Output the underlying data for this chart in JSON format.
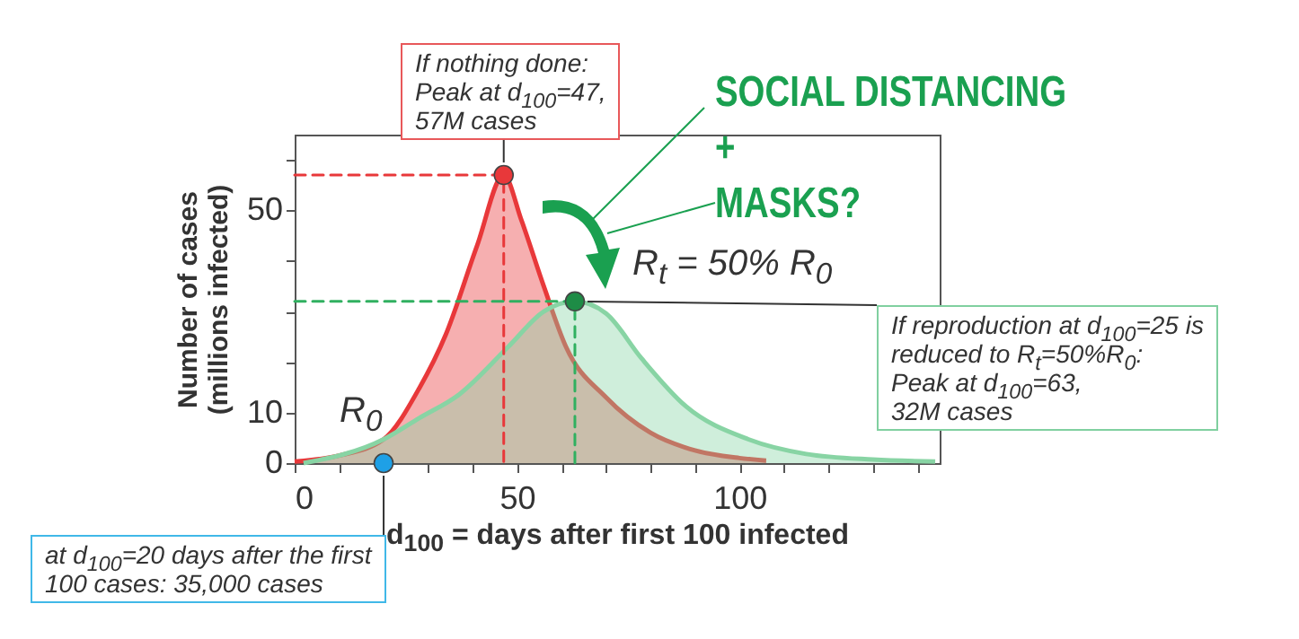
{
  "chart_data": {
    "type": "area",
    "xlabel": "d$_{100}$ = days after first 100 infected",
    "ylabel": "Number of cases\n(millions infected)",
    "xlim": [
      0,
      145
    ],
    "ylim": [
      0,
      65
    ],
    "xticks": [
      0,
      {
        "value": 10,
        "label": null
      },
      {
        "value": 20,
        "label": null
      },
      {
        "value": 30,
        "label": null
      },
      {
        "value": 40,
        "label": null
      },
      50,
      {
        "value": 60,
        "label": null
      },
      {
        "value": 70,
        "label": null
      },
      {
        "value": 80,
        "label": null
      },
      {
        "value": 90,
        "label": null
      },
      100,
      {
        "value": 110,
        "label": null
      },
      {
        "value": 120,
        "label": null
      },
      {
        "value": 130,
        "label": null
      },
      {
        "value": 140,
        "label": null
      }
    ],
    "yticks": [
      0,
      10,
      {
        "value": 20,
        "label": null
      },
      {
        "value": 30,
        "label": null
      },
      {
        "value": 40,
        "label": null
      },
      50,
      {
        "value": 60,
        "label": null
      }
    ],
    "grid": false,
    "series": [
      {
        "color": "#e8383a",
        "x": [
          0,
          10,
          20,
          28,
          34,
          41,
          47,
          51,
          56,
          61,
          70,
          80,
          90,
          100,
          106
        ],
        "values": [
          0.3,
          1.5,
          4.7,
          14.8,
          25.5,
          43,
          57,
          48,
          35,
          23,
          13,
          6,
          2.5,
          1,
          0.5
        ]
      },
      {
        "color": "#88d4a4",
        "x": [
          2,
          20,
          28,
          37,
          48,
          56,
          63,
          70,
          78,
          88,
          102,
          115,
          130,
          144
        ],
        "values": [
          0,
          4.7,
          8.9,
          13.6,
          23,
          30,
          32,
          29.6,
          20.7,
          11.2,
          4.7,
          1.8,
          0.7,
          0.3
        ]
      },
      {
        "type": "line",
        "color": "#e8383a",
        "line_style": "dashed",
        "x": [
          0,
          47,
          47
        ],
        "values": [
          57,
          57,
          0
        ]
      },
      {
        "type": "line",
        "color": "#30b060",
        "line_style": "dashed",
        "x": [
          0,
          63,
          63
        ],
        "values": [
          32,
          32,
          0
        ]
      },
      {
        "type": "scatter",
        "color": "#e8383a",
        "marker": "circle",
        "x": [
          47
        ],
        "values": [
          57
        ]
      },
      {
        "type": "scatter",
        "color": "#1e8c46",
        "marker": "circle",
        "x": [
          63
        ],
        "values": [
          32
        ]
      },
      {
        "type": "scatter",
        "color": "#1ea0e6",
        "marker": "circle",
        "x": [
          20
        ],
        "values": [
          0
        ]
      }
    ],
    "annotations": [
      {
        "text": "If nothing done:\nPeak at d$_{100}$=47,\n57M cases",
        "x": 47,
        "y": 57
      },
      "R$_{t}$ = 50% R$_{0}$",
      "If reproduction at d$_{100}$=25 is\nreduced to R$_{t}$=50%R$_{0}$:\nPeak at d$_{100}$=63,\n32M cases",
      "R$_{0}$",
      {
        "text": "at d$_{100}$=20 days after the first\n100 cases: 35,000 cases",
        "x": 20,
        "y": 0
      },
      "SOCIAL DISTANCING\n+\nMASKS?"
    ]
  }
}
